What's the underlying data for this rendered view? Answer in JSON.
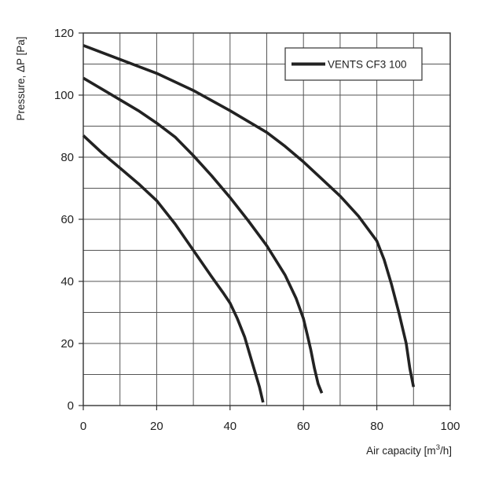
{
  "chart_data": {
    "type": "line",
    "title": "",
    "xlabel": "Air capacity [m",
    "xlabel_sup": "3",
    "xlabel_end": "/h]",
    "ylabel": "Pressure, ΔP [Pa]",
    "xlim": [
      0,
      100
    ],
    "ylim": [
      0,
      120
    ],
    "x_ticks": [
      "0",
      "20",
      "40",
      "60",
      "80",
      "100"
    ],
    "y_ticks": [
      "0",
      "20",
      "40",
      "60",
      "80",
      "100",
      "120"
    ],
    "grid": true,
    "legend_position": "top-right",
    "legend": [
      "VENTS CF3 100"
    ],
    "colors": {
      "curve": "#222222",
      "grid": "#555555",
      "frame": "#333333"
    },
    "series": [
      {
        "x": [
          0,
          10,
          20,
          30,
          40,
          50,
          55,
          60,
          65,
          70,
          75,
          80,
          82,
          84,
          86,
          88,
          89,
          90
        ],
        "y": [
          116,
          111.5,
          107,
          101.5,
          95,
          88,
          83.5,
          78.5,
          73,
          67.5,
          61,
          53,
          47,
          39,
          30,
          20,
          12,
          6
        ]
      },
      {
        "x": [
          0,
          5,
          10,
          15,
          20,
          25,
          30,
          35,
          40,
          45,
          50,
          55,
          58,
          60,
          61,
          62,
          63,
          64,
          65
        ],
        "y": [
          105.5,
          102,
          98.5,
          95,
          91,
          86.5,
          80.5,
          74,
          67,
          59.5,
          51.5,
          42,
          34.5,
          28,
          23,
          18,
          12,
          7,
          4
        ]
      },
      {
        "x": [
          0,
          5,
          10,
          15,
          20,
          25,
          30,
          35,
          38,
          40,
          42,
          44,
          46,
          48,
          49
        ],
        "y": [
          87,
          81.5,
          76.5,
          71.5,
          66,
          58.5,
          50,
          41.5,
          36.5,
          33,
          28,
          22,
          14,
          6,
          1
        ]
      }
    ]
  }
}
